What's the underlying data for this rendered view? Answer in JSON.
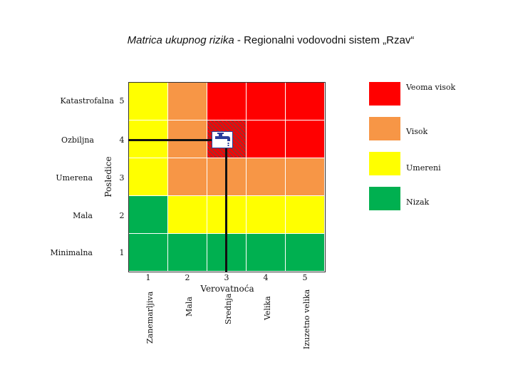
{
  "title": {
    "italic_part": "Matrica ukupnog rizika",
    "rest": " - Regionalni vodovodni sistem „Rzav“"
  },
  "y_axis": {
    "title": "Posledice",
    "levels": [
      {
        "num": "5",
        "label": "Katastrofalna"
      },
      {
        "num": "4",
        "label": "Ozbiljna"
      },
      {
        "num": "3",
        "label": "Umerena"
      },
      {
        "num": "2",
        "label": "Mala"
      },
      {
        "num": "1",
        "label": "Minimalna"
      }
    ]
  },
  "x_axis": {
    "title": "Verovatnoća",
    "levels": [
      {
        "num": "1",
        "label": "Zanemarljiva"
      },
      {
        "num": "2",
        "label": "Mala"
      },
      {
        "num": "3",
        "label": "Srednja"
      },
      {
        "num": "4",
        "label": "Velika"
      },
      {
        "num": "5",
        "label": "Izuzetno velika"
      }
    ]
  },
  "colors": {
    "red": "#ff0000",
    "orange": "#f79646",
    "yellow": "#ffff00",
    "green": "#00b050",
    "marker_cell": "#a52a2a"
  },
  "matrix_rows_top_to_bottom": [
    [
      "yellow",
      "orange",
      "red",
      "red",
      "red"
    ],
    [
      "yellow",
      "orange",
      "red",
      "red",
      "red"
    ],
    [
      "yellow",
      "orange",
      "orange",
      "orange",
      "orange"
    ],
    [
      "green",
      "yellow",
      "yellow",
      "yellow",
      "yellow"
    ],
    [
      "green",
      "green",
      "green",
      "green",
      "green"
    ]
  ],
  "marker": {
    "probability": 3,
    "consequence": 4,
    "icon": "faucet-icon"
  },
  "legend": [
    {
      "color": "red",
      "label": "Veoma visok"
    },
    {
      "color": "orange",
      "label": "Visok"
    },
    {
      "color": "yellow",
      "label": "Umereni"
    },
    {
      "color": "green",
      "label": "Nizak"
    }
  ]
}
